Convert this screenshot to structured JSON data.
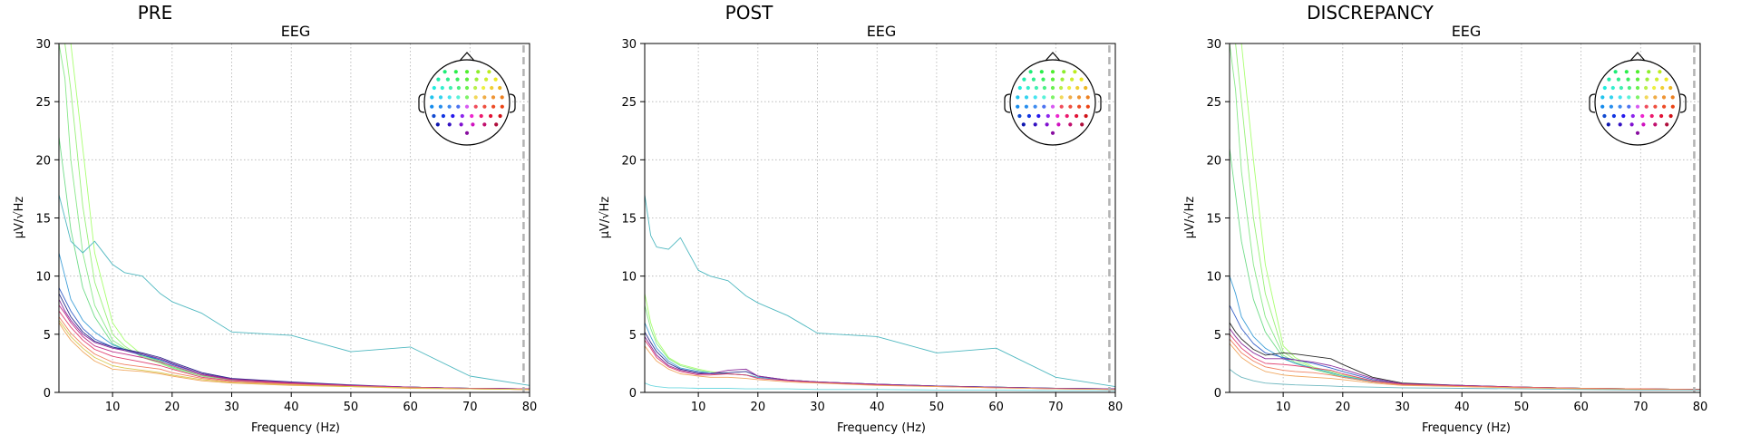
{
  "chart_data": [
    {
      "type": "line",
      "suptitle": "PRE",
      "title": "EEG",
      "xlabel": "Frequency (Hz)",
      "ylabel": "µV/√Hz",
      "xlim": [
        1,
        80
      ],
      "ylim": [
        0,
        30
      ],
      "xticks": [
        10,
        20,
        30,
        40,
        50,
        60,
        70,
        80
      ],
      "yticks": [
        0,
        5,
        10,
        15,
        20,
        25,
        30
      ],
      "grid": true,
      "nyquist_line_x": 79,
      "x": [
        1,
        2,
        3,
        5,
        7,
        10,
        12,
        15,
        18,
        20,
        25,
        30,
        40,
        50,
        60,
        70,
        80
      ],
      "series": [
        {
          "color": "#a8ff70",
          "values": [
            30,
            30,
            30,
            21,
            12,
            6,
            4.5,
            3.2,
            2.7,
            2.2,
            1.5,
            1.1,
            0.85,
            0.6,
            0.45,
            0.35,
            0.3
          ]
        },
        {
          "color": "#98f078",
          "values": [
            30,
            30,
            26,
            16,
            9.5,
            5,
            4,
            3,
            2.5,
            2.1,
            1.4,
            1.05,
            0.8,
            0.6,
            0.45,
            0.35,
            0.3
          ]
        },
        {
          "color": "#88e888",
          "values": [
            30,
            27,
            20,
            12,
            7.5,
            4.5,
            3.8,
            3.1,
            2.6,
            2.1,
            1.4,
            1.05,
            0.8,
            0.6,
            0.45,
            0.35,
            0.3
          ]
        },
        {
          "color": "#70dc88",
          "values": [
            22,
            18,
            14,
            9,
            6.5,
            4.2,
            3.7,
            3.2,
            2.7,
            2.2,
            1.5,
            1.1,
            0.8,
            0.6,
            0.45,
            0.35,
            0.3
          ]
        },
        {
          "color": "#4fb8c0",
          "values": [
            17,
            15,
            13,
            12,
            13,
            11,
            10.3,
            10,
            8.5,
            7.8,
            6.8,
            5.2,
            4.9,
            3.5,
            3.9,
            1.4,
            0.6
          ]
        },
        {
          "color": "#3e9ed8",
          "values": [
            12,
            10,
            8,
            6.2,
            5.2,
            4.1,
            3.7,
            3.3,
            2.8,
            2.4,
            1.6,
            1.15,
            0.85,
            0.6,
            0.45,
            0.35,
            0.3
          ]
        },
        {
          "color": "#3560c8",
          "values": [
            9,
            8,
            7,
            5.5,
            4.6,
            3.9,
            3.6,
            3.2,
            2.8,
            2.4,
            1.6,
            1.15,
            0.85,
            0.6,
            0.45,
            0.35,
            0.3
          ]
        },
        {
          "color": "#2a2a8a",
          "values": [
            8.5,
            7.5,
            6.5,
            5.2,
            4.4,
            3.9,
            3.7,
            3.4,
            3,
            2.6,
            1.7,
            1.2,
            0.9,
            0.65,
            0.45,
            0.35,
            0.3
          ]
        },
        {
          "color": "#8a2a9a",
          "values": [
            8,
            7,
            6.2,
            5,
            4.3,
            3.8,
            3.6,
            3.3,
            2.9,
            2.5,
            1.6,
            1.15,
            0.85,
            0.6,
            0.45,
            0.35,
            0.3
          ]
        },
        {
          "color": "#c0308a",
          "values": [
            7.5,
            6.8,
            6,
            4.8,
            4,
            3.5,
            3.3,
            3,
            2.6,
            2.3,
            1.5,
            1.1,
            0.8,
            0.6,
            0.45,
            0.35,
            0.3
          ]
        },
        {
          "color": "#e04070",
          "values": [
            7,
            6.3,
            5.6,
            4.5,
            3.7,
            3.1,
            2.9,
            2.6,
            2.3,
            2,
            1.3,
            1,
            0.75,
            0.55,
            0.4,
            0.3,
            0.25
          ]
        },
        {
          "color": "#f08060",
          "values": [
            6.5,
            5.8,
            5.1,
            4.1,
            3.3,
            2.6,
            2.4,
            2.2,
            2,
            1.7,
            1.2,
            0.9,
            0.7,
            0.5,
            0.4,
            0.3,
            0.25
          ]
        },
        {
          "color": "#f0a860",
          "values": [
            6,
            5.2,
            4.5,
            3.5,
            2.7,
            2,
            1.9,
            1.8,
            1.6,
            1.4,
            1,
            0.8,
            0.6,
            0.5,
            0.35,
            0.3,
            0.25
          ]
        },
        {
          "color": "#d8c850",
          "values": [
            6.2,
            5.5,
            4.8,
            3.8,
            3,
            2.3,
            2.1,
            1.9,
            1.7,
            1.5,
            1.1,
            0.85,
            0.65,
            0.5,
            0.4,
            0.3,
            0.25
          ]
        }
      ]
    },
    {
      "type": "line",
      "suptitle": "POST",
      "title": "EEG",
      "xlabel": "Frequency (Hz)",
      "ylabel": "µV/√Hz",
      "xlim": [
        1,
        80
      ],
      "ylim": [
        0,
        30
      ],
      "xticks": [
        10,
        20,
        30,
        40,
        50,
        60,
        70,
        80
      ],
      "yticks": [
        0,
        5,
        10,
        15,
        20,
        25,
        30
      ],
      "grid": true,
      "nyquist_line_x": 79,
      "x": [
        1,
        2,
        3,
        5,
        7,
        10,
        12,
        15,
        18,
        20,
        25,
        30,
        40,
        50,
        60,
        70,
        80
      ],
      "series": [
        {
          "color": "#a8ff70",
          "values": [
            8.5,
            6,
            4.5,
            3,
            2.4,
            2,
            1.8,
            1.6,
            1.5,
            1.3,
            1.05,
            0.9,
            0.7,
            0.55,
            0.45,
            0.35,
            0.3
          ]
        },
        {
          "color": "#88e888",
          "values": [
            7.5,
            5.5,
            4.2,
            2.9,
            2.3,
            1.9,
            1.7,
            1.6,
            1.5,
            1.3,
            1.05,
            0.9,
            0.7,
            0.55,
            0.45,
            0.35,
            0.3
          ]
        },
        {
          "color": "#4fb8c0",
          "values": [
            17,
            13.5,
            12.5,
            12.3,
            13.3,
            10.5,
            10,
            9.6,
            8.3,
            7.7,
            6.6,
            5.1,
            4.8,
            3.4,
            3.8,
            1.3,
            0.5
          ]
        },
        {
          "color": "#3e9ed8",
          "values": [
            6,
            4.8,
            3.8,
            2.7,
            2.1,
            1.8,
            1.7,
            1.6,
            1.5,
            1.3,
            1.05,
            0.9,
            0.7,
            0.55,
            0.45,
            0.35,
            0.3
          ]
        },
        {
          "color": "#2a2a8a",
          "values": [
            5.2,
            4.3,
            3.5,
            2.5,
            2,
            1.7,
            1.6,
            1.7,
            1.8,
            1.4,
            1.05,
            0.9,
            0.7,
            0.55,
            0.45,
            0.35,
            0.3
          ]
        },
        {
          "color": "#8a2a9a",
          "values": [
            4.8,
            4,
            3.2,
            2.3,
            1.9,
            1.6,
            1.6,
            1.9,
            2,
            1.4,
            1.05,
            0.9,
            0.7,
            0.55,
            0.45,
            0.35,
            0.3
          ]
        },
        {
          "color": "#e04070",
          "values": [
            4.5,
            3.8,
            3,
            2.2,
            1.8,
            1.5,
            1.5,
            1.6,
            1.5,
            1.2,
            1,
            0.85,
            0.65,
            0.5,
            0.4,
            0.3,
            0.25
          ]
        },
        {
          "color": "#f0a860",
          "values": [
            4,
            3.3,
            2.7,
            2,
            1.6,
            1.4,
            1.3,
            1.3,
            1.2,
            1.1,
            0.9,
            0.8,
            0.6,
            0.5,
            0.4,
            0.3,
            0.25
          ]
        },
        {
          "color": "#70d8e0",
          "values": [
            0.8,
            0.6,
            0.5,
            0.4,
            0.4,
            0.35,
            0.35,
            0.35,
            0.3,
            0.3,
            0.3,
            0.25,
            0.25,
            0.2,
            0.2,
            0.15,
            0.15
          ]
        }
      ]
    },
    {
      "type": "line",
      "suptitle": "DISCREPANCY",
      "title": "EEG",
      "xlabel": "Frequency (Hz)",
      "ylabel": "µV/√Hz",
      "xlim": [
        1,
        80
      ],
      "ylim": [
        0,
        30
      ],
      "xticks": [
        10,
        20,
        30,
        40,
        50,
        60,
        70,
        80
      ],
      "yticks": [
        0,
        5,
        10,
        15,
        20,
        25,
        30
      ],
      "grid": true,
      "nyquist_line_x": 79,
      "x": [
        1,
        2,
        3,
        5,
        7,
        10,
        12,
        15,
        18,
        20,
        25,
        30,
        40,
        50,
        60,
        70,
        80
      ],
      "series": [
        {
          "color": "#a8ff70",
          "values": [
            30,
            30,
            30,
            20,
            11,
            4,
            3,
            2.2,
            1.8,
            1.5,
            1,
            0.7,
            0.55,
            0.45,
            0.35,
            0.3,
            0.25
          ]
        },
        {
          "color": "#98f078",
          "values": [
            30,
            30,
            25,
            15,
            8.5,
            3.5,
            2.8,
            2.1,
            1.7,
            1.4,
            1,
            0.7,
            0.55,
            0.45,
            0.35,
            0.3,
            0.25
          ]
        },
        {
          "color": "#88e888",
          "values": [
            30,
            26,
            19,
            11,
            6.5,
            3.2,
            2.6,
            2,
            1.6,
            1.3,
            0.9,
            0.7,
            0.55,
            0.45,
            0.35,
            0.3,
            0.25
          ]
        },
        {
          "color": "#70dc88",
          "values": [
            21,
            17,
            13,
            8,
            5.2,
            3,
            2.5,
            2,
            1.6,
            1.3,
            0.9,
            0.7,
            0.55,
            0.45,
            0.35,
            0.3,
            0.25
          ]
        },
        {
          "color": "#3e9ed8",
          "values": [
            10,
            8.5,
            6.5,
            4.8,
            3.8,
            2.9,
            2.5,
            2.1,
            1.7,
            1.4,
            0.95,
            0.7,
            0.55,
            0.45,
            0.35,
            0.3,
            0.25
          ]
        },
        {
          "color": "#3560c8",
          "values": [
            7.5,
            6.5,
            5.5,
            4.2,
            3.4,
            3,
            2.8,
            2.5,
            2.1,
            1.8,
            1.1,
            0.75,
            0.6,
            0.45,
            0.35,
            0.3,
            0.25
          ]
        },
        {
          "color": "#2a2a2a",
          "values": [
            6,
            5.2,
            4.6,
            3.7,
            3.2,
            3.4,
            3.3,
            3.1,
            2.9,
            2.4,
            1.3,
            0.8,
            0.6,
            0.45,
            0.35,
            0.3,
            0.25
          ]
        },
        {
          "color": "#8a2a9a",
          "values": [
            5.5,
            4.8,
            4.2,
            3.4,
            2.9,
            2.9,
            2.8,
            2.6,
            2.3,
            2,
            1.2,
            0.75,
            0.6,
            0.45,
            0.35,
            0.3,
            0.25
          ]
        },
        {
          "color": "#e04070",
          "values": [
            5,
            4.4,
            3.8,
            3,
            2.5,
            2.4,
            2.3,
            2.1,
            1.9,
            1.6,
            1,
            0.7,
            0.55,
            0.45,
            0.35,
            0.3,
            0.25
          ]
        },
        {
          "color": "#f08060",
          "values": [
            4.6,
            4,
            3.4,
            2.7,
            2.2,
            1.9,
            1.8,
            1.7,
            1.5,
            1.3,
            0.9,
            0.65,
            0.5,
            0.4,
            0.35,
            0.3,
            0.25
          ]
        },
        {
          "color": "#f0a860",
          "values": [
            4.2,
            3.6,
            3,
            2.3,
            1.8,
            1.5,
            1.4,
            1.3,
            1.2,
            1.1,
            0.8,
            0.6,
            0.5,
            0.4,
            0.3,
            0.25,
            0.2
          ]
        },
        {
          "color": "#70b8c0",
          "values": [
            2,
            1.6,
            1.3,
            1,
            0.8,
            0.7,
            0.65,
            0.6,
            0.55,
            0.5,
            0.45,
            0.4,
            0.35,
            0.3,
            0.25,
            0.2,
            0.2
          ]
        }
      ]
    }
  ],
  "sensor_colors": [
    "#3aff3a",
    "#7dff3a",
    "#b6ff3a",
    "#ffe93a",
    "#3aff8c",
    "#3afff0",
    "#3ab6ff",
    "#ff9e3a",
    "#ff3a3a",
    "#3a7dff",
    "#3a3aff",
    "#b63aff",
    "#ff3ab6",
    "#ff3a7d",
    "#7d3aff",
    "#1a7a4a",
    "#2a4a9a",
    "#6a2a9a",
    "#9a1a6a",
    "#c01a4a"
  ]
}
